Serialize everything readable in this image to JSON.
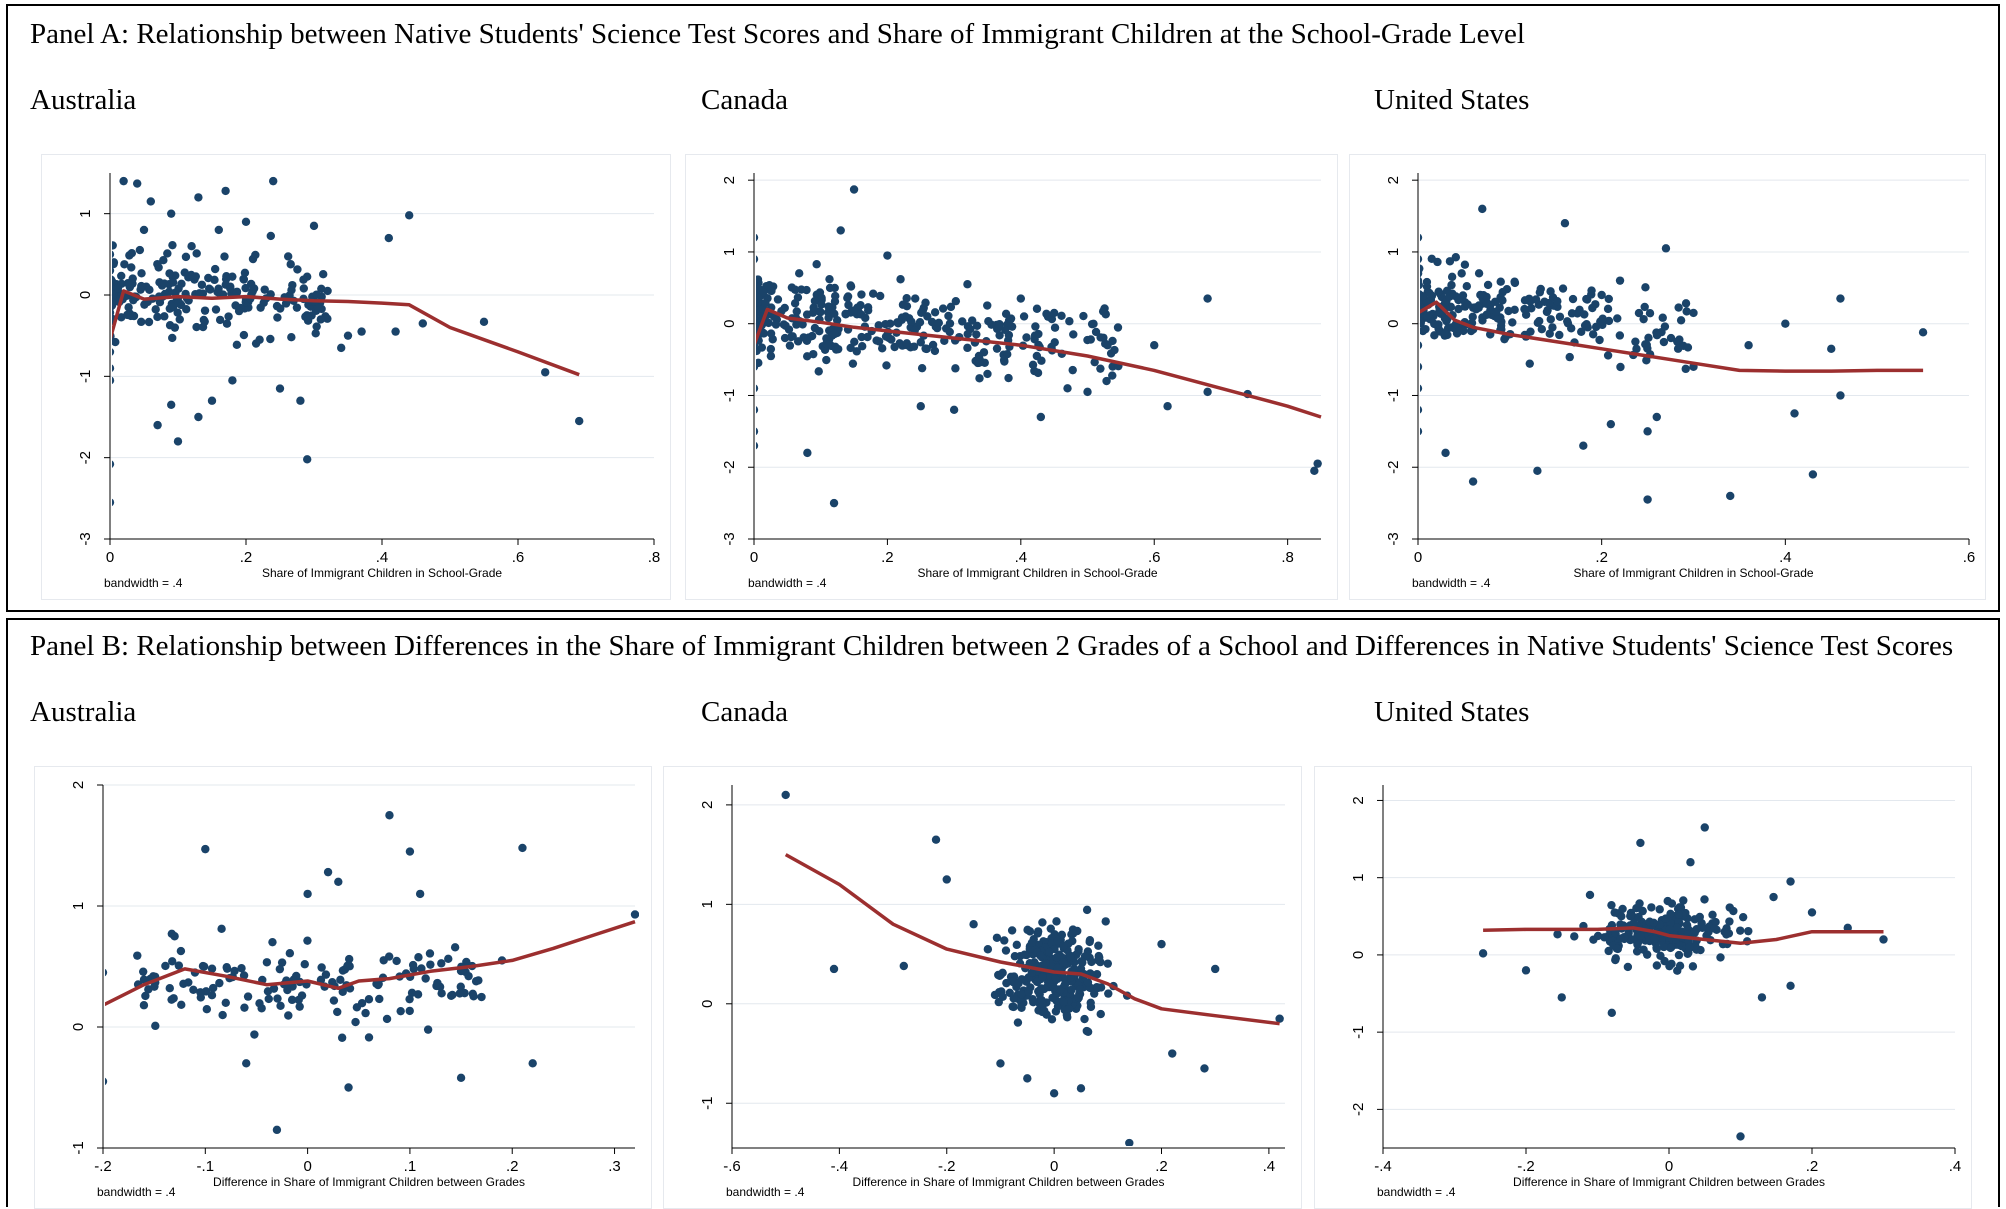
{
  "panelA": {
    "title": "Panel A: Relationship between Native Students' Science Test Scores and Share of Immigrant Children at the School-Grade Level",
    "countries": [
      "Australia",
      "Canada",
      "United States"
    ]
  },
  "panelB": {
    "title": "Panel B: Relationship between Differences in the Share of Immigrant Children between 2 Grades of a School and Differences in Native Students' Science Test Scores",
    "countries": [
      "Australia",
      "Canada",
      "United States"
    ]
  },
  "colors": {
    "points": "#1a4369",
    "line": "#9c2f2f",
    "grid": "#e3e8ee",
    "axis": "#000000"
  },
  "chart_data": [
    {
      "id": "a_australia",
      "type": "scatter",
      "country": "Australia",
      "xlabel": "Share of Immigrant Children in School-Grade",
      "note": "bandwidth = .4",
      "xlim": [
        0,
        0.8
      ],
      "ylim": [
        -3,
        1.5
      ],
      "xticks": [
        0,
        0.2,
        0.4,
        0.6,
        0.8
      ],
      "xticklabels": [
        "0",
        ".2",
        ".4",
        ".6",
        ".8"
      ],
      "yticks": [
        -3,
        -2,
        -1,
        0,
        1
      ],
      "yticklabels": [
        "-3",
        "-2",
        "-1",
        "0",
        "1"
      ],
      "points": [
        [
          0,
          0.5
        ],
        [
          0,
          0.3
        ],
        [
          0,
          0.1
        ],
        [
          0,
          -0.1
        ],
        [
          0,
          -0.3
        ],
        [
          0,
          -0.5
        ],
        [
          0,
          -0.7
        ],
        [
          0,
          -0.9
        ],
        [
          0,
          -1.05
        ],
        [
          0,
          -2.08
        ],
        [
          0,
          -2.55
        ],
        [
          0.02,
          1.4
        ],
        [
          0.04,
          1.37
        ],
        [
          0.05,
          0.8
        ],
        [
          0.06,
          1.15
        ],
        [
          0.07,
          -1.6
        ],
        [
          0.09,
          -1.35
        ],
        [
          0.09,
          1.0
        ],
        [
          0.1,
          -1.8
        ],
        [
          0.12,
          0.6
        ],
        [
          0.13,
          1.2
        ],
        [
          0.13,
          -1.5
        ],
        [
          0.15,
          -1.3
        ],
        [
          0.16,
          0.8
        ],
        [
          0.17,
          1.28
        ],
        [
          0.18,
          -1.05
        ],
        [
          0.2,
          0.9
        ],
        [
          0.22,
          -0.55
        ],
        [
          0.24,
          1.4
        ],
        [
          0.25,
          -1.15
        ],
        [
          0.28,
          -1.3
        ],
        [
          0.29,
          -2.02
        ],
        [
          0.3,
          0.85
        ],
        [
          0.31,
          -0.3
        ],
        [
          0.32,
          0.05
        ],
        [
          0.34,
          -0.65
        ],
        [
          0.35,
          -0.5
        ],
        [
          0.37,
          -0.45
        ],
        [
          0.42,
          -0.45
        ],
        [
          0.41,
          0.7
        ],
        [
          0.44,
          0.98
        ],
        [
          0.46,
          -0.35
        ],
        [
          0.55,
          -0.33
        ],
        [
          0.64,
          -0.95
        ],
        [
          0.69,
          -1.55
        ]
      ],
      "smooth": [
        [
          0,
          -0.55
        ],
        [
          0.02,
          0.05
        ],
        [
          0.05,
          -0.05
        ],
        [
          0.1,
          -0.02
        ],
        [
          0.15,
          -0.04
        ],
        [
          0.2,
          -0.02
        ],
        [
          0.25,
          -0.05
        ],
        [
          0.3,
          -0.07
        ],
        [
          0.35,
          -0.08
        ],
        [
          0.4,
          -0.1
        ],
        [
          0.44,
          -0.12
        ],
        [
          0.5,
          -0.4
        ],
        [
          0.55,
          -0.55
        ],
        [
          0.6,
          -0.7
        ],
        [
          0.69,
          -0.98
        ]
      ]
    },
    {
      "id": "a_canada",
      "type": "scatter",
      "country": "Canada",
      "xlabel": "Share of Immigrant Children in School-Grade",
      "note": "bandwidth = .4",
      "xlim": [
        0,
        0.85
      ],
      "ylim": [
        -3,
        2.1
      ],
      "xticks": [
        0,
        0.2,
        0.4,
        0.6,
        0.8
      ],
      "xticklabels": [
        "0",
        ".2",
        ".4",
        ".6",
        ".8"
      ],
      "yticks": [
        -3,
        -2,
        -1,
        0,
        1,
        2
      ],
      "yticklabels": [
        "-3",
        "-2",
        "-1",
        "0",
        "1",
        "2"
      ],
      "points": [
        [
          0,
          1.2
        ],
        [
          0,
          0.9
        ],
        [
          0,
          0.6
        ],
        [
          0,
          0.3
        ],
        [
          0,
          0.0
        ],
        [
          0,
          -0.3
        ],
        [
          0,
          -0.6
        ],
        [
          0,
          -0.9
        ],
        [
          0,
          -1.2
        ],
        [
          0,
          -1.5
        ],
        [
          0,
          -1.7
        ],
        [
          0.08,
          -1.8
        ],
        [
          0.12,
          -2.5
        ],
        [
          0.15,
          1.87
        ],
        [
          0.13,
          1.3
        ],
        [
          0.2,
          0.95
        ],
        [
          0.25,
          -1.15
        ],
        [
          0.3,
          -1.2
        ],
        [
          0.32,
          0.55
        ],
        [
          0.35,
          -0.7
        ],
        [
          0.4,
          0.35
        ],
        [
          0.43,
          -1.3
        ],
        [
          0.45,
          0.15
        ],
        [
          0.47,
          -0.9
        ],
        [
          0.5,
          -0.95
        ],
        [
          0.53,
          -0.3
        ],
        [
          0.6,
          -0.3
        ],
        [
          0.62,
          -1.15
        ],
        [
          0.68,
          0.35
        ],
        [
          0.68,
          -0.95
        ],
        [
          0.74,
          -0.98
        ],
        [
          0.84,
          -2.05
        ],
        [
          0.845,
          -1.95
        ]
      ],
      "smooth": [
        [
          0,
          -0.3
        ],
        [
          0.02,
          0.2
        ],
        [
          0.05,
          0.08
        ],
        [
          0.1,
          0.02
        ],
        [
          0.15,
          -0.05
        ],
        [
          0.2,
          -0.1
        ],
        [
          0.3,
          -0.2
        ],
        [
          0.4,
          -0.3
        ],
        [
          0.5,
          -0.45
        ],
        [
          0.6,
          -0.65
        ],
        [
          0.7,
          -0.9
        ],
        [
          0.8,
          -1.15
        ],
        [
          0.85,
          -1.3
        ]
      ]
    },
    {
      "id": "a_us",
      "type": "scatter",
      "country": "United States",
      "xlabel": "Share of Immigrant Children in School-Grade",
      "note": "bandwidth = .4",
      "xlim": [
        0,
        0.6
      ],
      "ylim": [
        -3,
        2.1
      ],
      "xticks": [
        0,
        0.2,
        0.4,
        0.6
      ],
      "xticklabels": [
        "0",
        ".2",
        ".4",
        ".6"
      ],
      "yticks": [
        -3,
        -2,
        -1,
        0,
        1,
        2
      ],
      "yticklabels": [
        "-3",
        "-2",
        "-1",
        "0",
        "1",
        "2"
      ],
      "points": [
        [
          0,
          1.2
        ],
        [
          0,
          0.9
        ],
        [
          0,
          0.6
        ],
        [
          0,
          0.3
        ],
        [
          0,
          0.0
        ],
        [
          0,
          -0.3
        ],
        [
          0,
          -0.6
        ],
        [
          0,
          -0.9
        ],
        [
          0,
          -1.2
        ],
        [
          0,
          -1.5
        ],
        [
          0.03,
          -1.8
        ],
        [
          0.06,
          -2.2
        ],
        [
          0.07,
          1.6
        ],
        [
          0.13,
          -2.05
        ],
        [
          0.16,
          1.4
        ],
        [
          0.18,
          -1.7
        ],
        [
          0.2,
          0.4
        ],
        [
          0.21,
          -1.4
        ],
        [
          0.22,
          0.6
        ],
        [
          0.25,
          -2.45
        ],
        [
          0.25,
          -1.5
        ],
        [
          0.26,
          -1.3
        ],
        [
          0.27,
          1.05
        ],
        [
          0.3,
          0.15
        ],
        [
          0.3,
          -0.6
        ],
        [
          0.34,
          -2.4
        ],
        [
          0.36,
          -0.3
        ],
        [
          0.4,
          0.0
        ],
        [
          0.41,
          -1.25
        ],
        [
          0.43,
          -2.1
        ],
        [
          0.45,
          -0.35
        ],
        [
          0.46,
          0.35
        ],
        [
          0.46,
          -1.0
        ],
        [
          0.55,
          -0.12
        ]
      ],
      "smooth": [
        [
          0,
          0.15
        ],
        [
          0.02,
          0.3
        ],
        [
          0.04,
          0.05
        ],
        [
          0.06,
          -0.05
        ],
        [
          0.1,
          -0.15
        ],
        [
          0.15,
          -0.25
        ],
        [
          0.2,
          -0.35
        ],
        [
          0.25,
          -0.45
        ],
        [
          0.3,
          -0.55
        ],
        [
          0.35,
          -0.65
        ],
        [
          0.4,
          -0.66
        ],
        [
          0.45,
          -0.66
        ],
        [
          0.5,
          -0.65
        ],
        [
          0.55,
          -0.65
        ]
      ]
    },
    {
      "id": "b_australia",
      "type": "scatter",
      "country": "Australia",
      "xlabel": "Difference in Share of Immigrant Children between Grades",
      "note": "bandwidth = .4",
      "xlim": [
        -0.2,
        0.32
      ],
      "ylim": [
        -1,
        2
      ],
      "xticks": [
        -0.2,
        -0.1,
        0,
        0.1,
        0.2,
        0.3
      ],
      "xticklabels": [
        "-.2",
        "-.1",
        "0",
        ".1",
        ".2",
        ".3"
      ],
      "yticks": [
        -1,
        0,
        1,
        2
      ],
      "yticklabels": [
        "-1",
        "0",
        "1",
        "2"
      ],
      "points": [
        [
          -0.2,
          0.45
        ],
        [
          -0.2,
          -0.45
        ],
        [
          -0.16,
          0.18
        ],
        [
          -0.13,
          0.75
        ],
        [
          -0.1,
          1.47
        ],
        [
          -0.08,
          0.2
        ],
        [
          -0.06,
          -0.3
        ],
        [
          -0.03,
          -0.85
        ],
        [
          0,
          1.1
        ],
        [
          0.02,
          1.28
        ],
        [
          0.03,
          1.2
        ],
        [
          0.04,
          -0.5
        ],
        [
          0.08,
          1.75
        ],
        [
          0.1,
          1.45
        ],
        [
          0.11,
          1.1
        ],
        [
          0.15,
          -0.42
        ],
        [
          0.19,
          0.55
        ],
        [
          0.21,
          1.48
        ],
        [
          0.22,
          -0.3
        ],
        [
          0.32,
          0.93
        ]
      ],
      "smooth": [
        [
          -0.2,
          0.18
        ],
        [
          -0.16,
          0.35
        ],
        [
          -0.12,
          0.48
        ],
        [
          -0.08,
          0.42
        ],
        [
          -0.04,
          0.35
        ],
        [
          0,
          0.38
        ],
        [
          0.03,
          0.32
        ],
        [
          0.05,
          0.38
        ],
        [
          0.08,
          0.4
        ],
        [
          0.12,
          0.46
        ],
        [
          0.16,
          0.5
        ],
        [
          0.2,
          0.55
        ],
        [
          0.24,
          0.65
        ],
        [
          0.28,
          0.76
        ],
        [
          0.32,
          0.87
        ]
      ]
    },
    {
      "id": "b_canada",
      "type": "scatter",
      "country": "Canada",
      "xlabel": "Difference in Share of Immigrant Children between Grades",
      "note": "bandwidth = .4",
      "xlim": [
        -0.6,
        0.43
      ],
      "ylim": [
        -1.45,
        2.2
      ],
      "xticks": [
        -0.6,
        -0.4,
        -0.2,
        0,
        0.2,
        0.4
      ],
      "xticklabels": [
        "-.6",
        "-.4",
        "-.2",
        "0",
        ".2",
        ".4"
      ],
      "yticks": [
        -1,
        0,
        1,
        2
      ],
      "yticklabels": [
        "-1",
        "0",
        "1",
        "2"
      ],
      "points": [
        [
          -0.5,
          2.1
        ],
        [
          -0.41,
          0.35
        ],
        [
          -0.22,
          1.65
        ],
        [
          -0.2,
          1.25
        ],
        [
          -0.28,
          0.38
        ],
        [
          -0.15,
          0.8
        ],
        [
          -0.1,
          -0.6
        ],
        [
          0.14,
          -1.4
        ],
        [
          0.22,
          -0.5
        ],
        [
          0.28,
          -0.65
        ],
        [
          0.42,
          -0.15
        ],
        [
          0.3,
          0.35
        ],
        [
          0.2,
          0.6
        ],
        [
          0.0,
          -0.9
        ],
        [
          0.05,
          -0.85
        ],
        [
          -0.05,
          -0.75
        ]
      ],
      "smooth": [
        [
          -0.5,
          1.5
        ],
        [
          -0.4,
          1.2
        ],
        [
          -0.3,
          0.8
        ],
        [
          -0.2,
          0.55
        ],
        [
          -0.1,
          0.42
        ],
        [
          0,
          0.32
        ],
        [
          0.05,
          0.3
        ],
        [
          0.1,
          0.2
        ],
        [
          0.15,
          0.05
        ],
        [
          0.2,
          -0.05
        ],
        [
          0.3,
          -0.12
        ],
        [
          0.42,
          -0.2
        ]
      ]
    },
    {
      "id": "b_us",
      "type": "scatter",
      "country": "United States",
      "xlabel": "Difference in Share of Immigrant Children between Grades",
      "note": "bandwidth = .4",
      "xlim": [
        -0.4,
        0.4
      ],
      "ylim": [
        -2.5,
        2.2
      ],
      "xticks": [
        -0.4,
        -0.2,
        0,
        0.2,
        0.4
      ],
      "xticklabels": [
        "-.4",
        "-.2",
        "0",
        ".2",
        ".4"
      ],
      "yticks": [
        -2,
        -1,
        0,
        1,
        2
      ],
      "yticklabels": [
        "-2",
        "-1",
        "0",
        "1",
        "2"
      ],
      "points": [
        [
          -0.26,
          0.02
        ],
        [
          -0.2,
          -0.2
        ],
        [
          -0.15,
          -0.55
        ],
        [
          -0.08,
          -0.75
        ],
        [
          -0.04,
          1.45
        ],
        [
          0.03,
          1.2
        ],
        [
          0.05,
          1.65
        ],
        [
          0.1,
          -2.35
        ],
        [
          0.13,
          -0.55
        ],
        [
          0.17,
          -0.4
        ],
        [
          0.17,
          0.95
        ],
        [
          0.2,
          0.55
        ],
        [
          0.3,
          0.2
        ],
        [
          0.25,
          0.35
        ]
      ],
      "smooth": [
        [
          -0.26,
          0.32
        ],
        [
          -0.2,
          0.33
        ],
        [
          -0.15,
          0.33
        ],
        [
          -0.1,
          0.33
        ],
        [
          -0.05,
          0.35
        ],
        [
          -0.02,
          0.3
        ],
        [
          0,
          0.25
        ],
        [
          0.05,
          0.2
        ],
        [
          0.1,
          0.15
        ],
        [
          0.15,
          0.2
        ],
        [
          0.2,
          0.3
        ],
        [
          0.25,
          0.3
        ],
        [
          0.3,
          0.3
        ]
      ]
    }
  ]
}
